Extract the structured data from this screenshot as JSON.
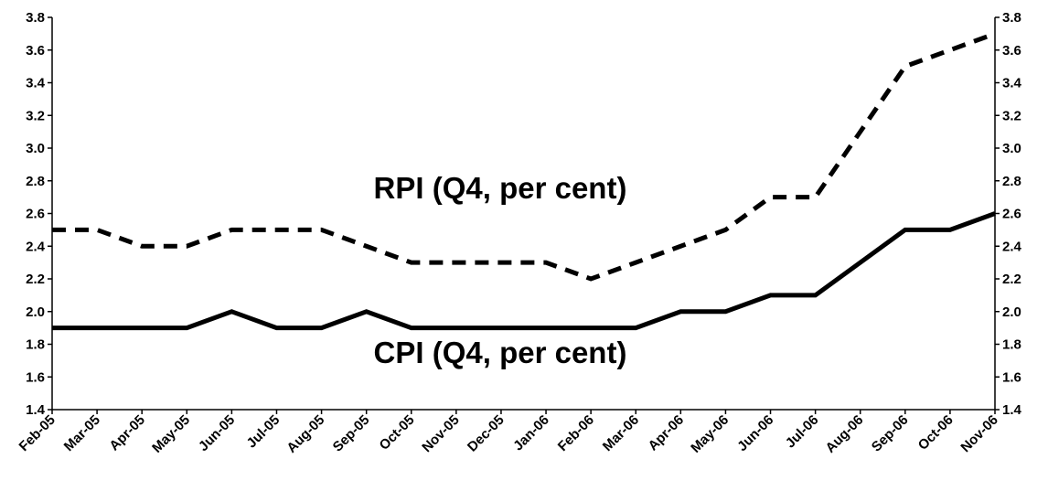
{
  "chart_data": {
    "type": "line",
    "title": "",
    "xlabel": "",
    "ylabel": "",
    "ylim": [
      1.4,
      3.8
    ],
    "y_ticks": [
      "1.4",
      "1.6",
      "1.8",
      "2.0",
      "2.2",
      "2.4",
      "2.6",
      "2.8",
      "3.0",
      "3.2",
      "3.4",
      "3.6",
      "3.8"
    ],
    "y_axis_sides": "left-and-right",
    "grid": false,
    "categories": [
      "Feb-05",
      "Mar-05",
      "Apr-05",
      "May-05",
      "Jun-05",
      "Jul-05",
      "Aug-05",
      "Sep-05",
      "Oct-05",
      "Nov-05",
      "Dec-05",
      "Jan-06",
      "Feb-06",
      "Mar-06",
      "Apr-06",
      "May-06",
      "Jun-06",
      "Jul-06",
      "Aug-06",
      "Sep-06",
      "Oct-06",
      "Nov-06"
    ],
    "series": [
      {
        "name": "RPI (Q4, per cent)",
        "style": "dashed",
        "color": "#000000",
        "values": [
          2.5,
          2.5,
          2.4,
          2.4,
          2.5,
          2.5,
          2.5,
          2.4,
          2.3,
          2.3,
          2.3,
          2.3,
          2.2,
          2.3,
          2.4,
          2.5,
          2.7,
          2.7,
          3.1,
          3.5,
          3.6,
          3.7
        ]
      },
      {
        "name": "CPI (Q4, per cent)",
        "style": "solid",
        "color": "#000000",
        "values": [
          1.9,
          1.9,
          1.9,
          1.9,
          2.0,
          1.9,
          1.9,
          2.0,
          1.9,
          1.9,
          1.9,
          1.9,
          1.9,
          1.9,
          2.0,
          2.0,
          2.1,
          2.1,
          2.3,
          2.5,
          2.5,
          2.6
        ]
      }
    ]
  }
}
